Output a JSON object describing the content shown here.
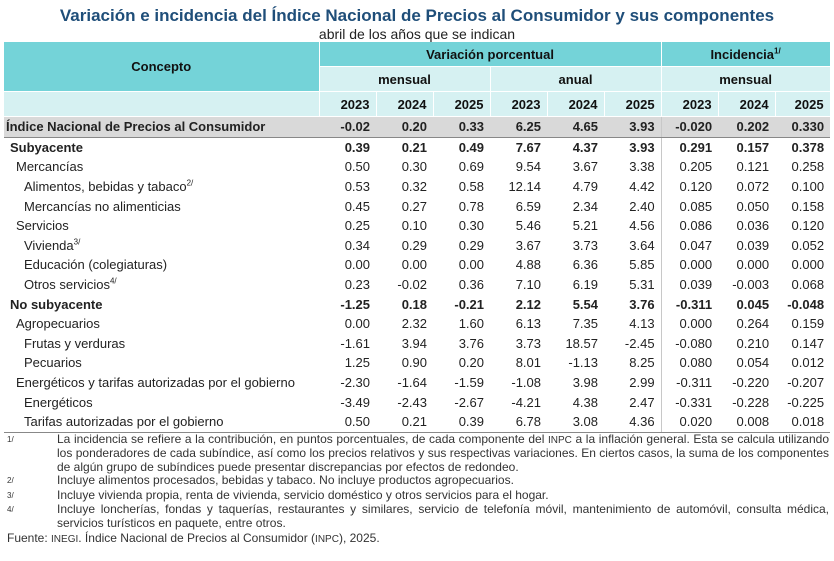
{
  "title": "Variación e incidencia del Índice Nacional de Precios al Consumidor y sus componentes",
  "subtitle": "abril de los años que se indican",
  "header": {
    "concepto": "Concepto",
    "variacion": "Variación porcentual",
    "incidencia": "Incidencia",
    "incidencia_sup": "1/",
    "mensual": "mensual",
    "anual": "anual",
    "mensual_inc": "mensual",
    "years": [
      "2023",
      "2024",
      "2025",
      "2023",
      "2024",
      "2025",
      "2023",
      "2024",
      "2025"
    ]
  },
  "rows": [
    {
      "label": "Índice Nacional de Precios al Consumidor",
      "sup": "",
      "style": "total",
      "level": 0,
      "values": [
        "-0.02",
        "0.20",
        "0.33",
        "6.25",
        "4.65",
        "3.93",
        "-0.020",
        "0.202",
        "0.330"
      ]
    },
    {
      "label": "Subyacente",
      "sup": "",
      "style": "bold",
      "level": 1,
      "values": [
        "0.39",
        "0.21",
        "0.49",
        "7.67",
        "4.37",
        "3.93",
        "0.291",
        "0.157",
        "0.378"
      ]
    },
    {
      "label": "Mercancías",
      "sup": "",
      "style": "",
      "level": 2,
      "values": [
        "0.50",
        "0.30",
        "0.69",
        "9.54",
        "3.67",
        "3.38",
        "0.205",
        "0.121",
        "0.258"
      ]
    },
    {
      "label": "Alimentos, bebidas y tabaco",
      "sup": "2/",
      "style": "",
      "level": 3,
      "values": [
        "0.53",
        "0.32",
        "0.58",
        "12.14",
        "4.79",
        "4.42",
        "0.120",
        "0.072",
        "0.100"
      ]
    },
    {
      "label": "Mercancías no alimenticias",
      "sup": "",
      "style": "",
      "level": 3,
      "values": [
        "0.45",
        "0.27",
        "0.78",
        "6.59",
        "2.34",
        "2.40",
        "0.085",
        "0.050",
        "0.158"
      ]
    },
    {
      "label": "Servicios",
      "sup": "",
      "style": "",
      "level": 2,
      "values": [
        "0.25",
        "0.10",
        "0.30",
        "5.46",
        "5.21",
        "4.56",
        "0.086",
        "0.036",
        "0.120"
      ]
    },
    {
      "label": "Vivienda",
      "sup": "3/",
      "style": "",
      "level": 3,
      "values": [
        "0.34",
        "0.29",
        "0.29",
        "3.67",
        "3.73",
        "3.64",
        "0.047",
        "0.039",
        "0.052"
      ]
    },
    {
      "label": "Educación (colegiaturas)",
      "sup": "",
      "style": "",
      "level": 3,
      "values": [
        "0.00",
        "0.00",
        "0.00",
        "4.88",
        "6.36",
        "5.85",
        "0.000",
        "0.000",
        "0.000"
      ]
    },
    {
      "label": "Otros servicios",
      "sup": "4/",
      "style": "",
      "level": 3,
      "values": [
        "0.23",
        "-0.02",
        "0.36",
        "7.10",
        "6.19",
        "5.31",
        "0.039",
        "-0.003",
        "0.068"
      ]
    },
    {
      "label": "No subyacente",
      "sup": "",
      "style": "bold",
      "level": 1,
      "values": [
        "-1.25",
        "0.18",
        "-0.21",
        "2.12",
        "5.54",
        "3.76",
        "-0.311",
        "0.045",
        "-0.048"
      ]
    },
    {
      "label": "Agropecuarios",
      "sup": "",
      "style": "",
      "level": 2,
      "values": [
        "0.00",
        "2.32",
        "1.60",
        "6.13",
        "7.35",
        "4.13",
        "0.000",
        "0.264",
        "0.159"
      ]
    },
    {
      "label": "Frutas y verduras",
      "sup": "",
      "style": "",
      "level": 3,
      "values": [
        "-1.61",
        "3.94",
        "3.76",
        "3.73",
        "18.57",
        "-2.45",
        "-0.080",
        "0.210",
        "0.147"
      ]
    },
    {
      "label": "Pecuarios",
      "sup": "",
      "style": "",
      "level": 3,
      "values": [
        "1.25",
        "0.90",
        "0.20",
        "8.01",
        "-1.13",
        "8.25",
        "0.080",
        "0.054",
        "0.012"
      ]
    },
    {
      "label": "Energéticos y tarifas autorizadas por el gobierno",
      "sup": "",
      "style": "",
      "level": 2,
      "values": [
        "-2.30",
        "-1.64",
        "-1.59",
        "-1.08",
        "3.98",
        "2.99",
        "-0.311",
        "-0.220",
        "-0.207"
      ]
    },
    {
      "label": "Energéticos",
      "sup": "",
      "style": "",
      "level": 3,
      "values": [
        "-3.49",
        "-2.43",
        "-2.67",
        "-4.21",
        "4.38",
        "2.47",
        "-0.331",
        "-0.228",
        "-0.225"
      ]
    },
    {
      "label": "Tarifas autorizadas por el gobierno",
      "sup": "",
      "style": "",
      "level": 3,
      "values": [
        "0.50",
        "0.21",
        "0.39",
        "6.78",
        "3.08",
        "4.36",
        "0.020",
        "0.008",
        "0.018"
      ]
    }
  ],
  "notes": [
    {
      "mark": "1/",
      "parts": [
        "La incidencia se refiere a la contribución, en puntos porcentuales, de cada componente del ",
        "INPC",
        " a la inflación general. Esta se calcula utilizando los ponderadores de cada subíndice, así como los precios relativos y sus respectivas variaciones. En ciertos casos, la suma de los componentes de algún grupo de subíndices puede presentar discrepancias por efectos de redondeo."
      ]
    },
    {
      "mark": "2/",
      "parts": [
        "Incluye alimentos procesados, bebidas y tabaco. No incluye productos agropecuarios.",
        "",
        ""
      ]
    },
    {
      "mark": "3/",
      "parts": [
        "Incluye vivienda propia, renta de vivienda, servicio doméstico y otros servicios para el hogar.",
        "",
        ""
      ]
    },
    {
      "mark": "4/",
      "parts": [
        "Incluye loncherías, fondas y taquerías, restaurantes y similares, servicio de telefonía móvil, mantenimiento de automóvil, consulta médica, servicios turísticos en paquete, entre otros.",
        "",
        ""
      ]
    }
  ],
  "source": {
    "prefix": "Fuente: ",
    "org": "INEGI",
    "mid": ". Índice Nacional de Precios al Consumidor (",
    "abbr": "INPC",
    "suffix": "), 2025."
  },
  "colors": {
    "title": "#1f4e79",
    "header_dark": "#74d3d8",
    "header_light": "#d6f1f2",
    "total_row": "#d9d9d9"
  }
}
